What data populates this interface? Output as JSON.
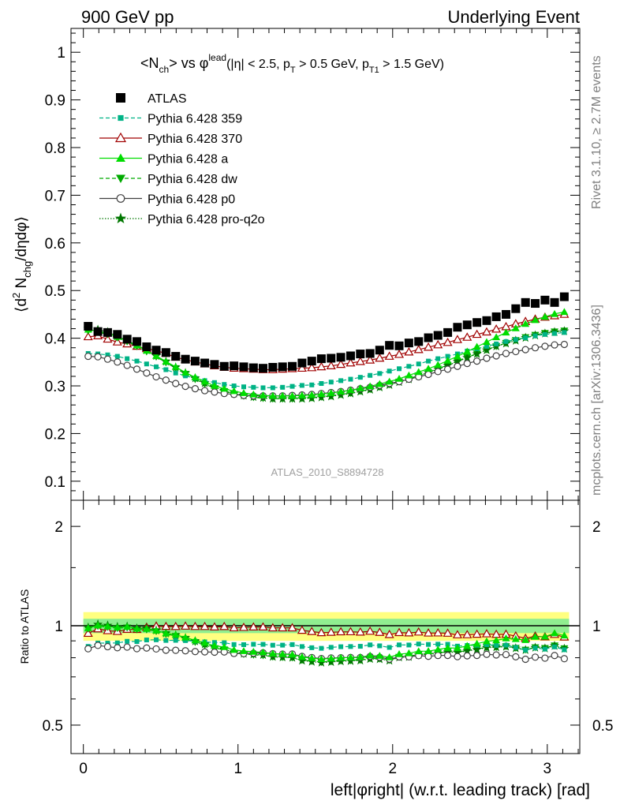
{
  "header": {
    "left": "900 GeV pp",
    "right": "Underlying Event"
  },
  "side_labels": {
    "rivet": "Rivet 3.1.10, ≥ 2.7M events",
    "mcplots": "mcplots.cern.ch [arXiv:1306.3436]"
  },
  "watermark": "ATLAS_2010_S8894728",
  "chart_data": [
    {
      "type": "scatter",
      "title": "<N_ch> vs φ^lead (|η| < 2.5, p_T > 0.5 GeV, p_T1 > 1.5 GeV)",
      "title_parts": {
        "main": "<N",
        "main_sub": "ch",
        "mid": "> vs φ",
        "mid_sup": "lead",
        "cuts_a": "(|η| < 2.5, p",
        "cuts_a_sub": "T",
        "cuts_b": " > 0.5 GeV, p",
        "cuts_b_sub": "T1",
        "cuts_c": " > 1.5 GeV)"
      },
      "ylabel": "⟨d² N_chg/dηdφ⟩",
      "ylabel_parts": {
        "a": "⟨d",
        "a_sup": "2",
        "b": " N",
        "b_sub": "chg",
        "c": "/dηdφ⟩"
      },
      "xlim": [
        -0.08,
        3.21
      ],
      "ylim": [
        0.06,
        1.05
      ],
      "yticks": [
        "0.1",
        "0.2",
        "0.3",
        "0.4",
        "0.5",
        "0.6",
        "0.7",
        "0.8",
        "0.9",
        "1"
      ],
      "x": [
        0.031,
        0.094,
        0.157,
        0.22,
        0.283,
        0.346,
        0.409,
        0.471,
        0.534,
        0.597,
        0.66,
        0.723,
        0.785,
        0.848,
        0.911,
        0.974,
        1.037,
        1.1,
        1.162,
        1.225,
        1.288,
        1.351,
        1.414,
        1.477,
        1.539,
        1.602,
        1.665,
        1.728,
        1.791,
        1.854,
        1.916,
        1.979,
        2.042,
        2.105,
        2.168,
        2.231,
        2.293,
        2.356,
        2.419,
        2.482,
        2.545,
        2.608,
        2.67,
        2.733,
        2.796,
        2.859,
        2.922,
        2.985,
        3.047,
        3.11
      ],
      "legend": {
        "position": "top-left"
      },
      "series": [
        {
          "name": "ATLAS",
          "color": "#000000",
          "marker": "square",
          "line": "none",
          "values": [
            0.425,
            0.414,
            0.412,
            0.408,
            0.398,
            0.393,
            0.382,
            0.375,
            0.37,
            0.362,
            0.356,
            0.352,
            0.348,
            0.345,
            0.341,
            0.342,
            0.34,
            0.338,
            0.337,
            0.339,
            0.34,
            0.341,
            0.348,
            0.352,
            0.357,
            0.358,
            0.36,
            0.363,
            0.367,
            0.368,
            0.375,
            0.385,
            0.384,
            0.39,
            0.393,
            0.401,
            0.406,
            0.412,
            0.423,
            0.428,
            0.433,
            0.437,
            0.445,
            0.45,
            0.462,
            0.475,
            0.473,
            0.48,
            0.475,
            0.487
          ]
        },
        {
          "name": "Pythia 6.428 359",
          "color": "#00b386",
          "marker": "small-square",
          "line": "dashed",
          "values": [
            0.368,
            0.367,
            0.365,
            0.362,
            0.357,
            0.352,
            0.346,
            0.34,
            0.334,
            0.327,
            0.321,
            0.316,
            0.311,
            0.307,
            0.303,
            0.3,
            0.298,
            0.297,
            0.296,
            0.296,
            0.297,
            0.299,
            0.301,
            0.302,
            0.305,
            0.308,
            0.311,
            0.314,
            0.318,
            0.322,
            0.326,
            0.331,
            0.336,
            0.341,
            0.346,
            0.352,
            0.357,
            0.362,
            0.367,
            0.373,
            0.378,
            0.383,
            0.388,
            0.393,
            0.397,
            0.401,
            0.405,
            0.408,
            0.41,
            0.412
          ]
        },
        {
          "name": "Pythia 6.428 370",
          "color": "#a00000",
          "marker": "open-triangle",
          "line": "solid",
          "values": [
            0.403,
            0.405,
            0.398,
            0.392,
            0.388,
            0.383,
            0.378,
            0.374,
            0.368,
            0.36,
            0.355,
            0.35,
            0.346,
            0.342,
            0.339,
            0.337,
            0.336,
            0.335,
            0.334,
            0.334,
            0.335,
            0.336,
            0.337,
            0.338,
            0.34,
            0.342,
            0.345,
            0.348,
            0.351,
            0.354,
            0.358,
            0.362,
            0.366,
            0.371,
            0.376,
            0.381,
            0.386,
            0.391,
            0.397,
            0.402,
            0.408,
            0.413,
            0.419,
            0.424,
            0.43,
            0.435,
            0.44,
            0.444,
            0.447,
            0.45
          ]
        },
        {
          "name": "Pythia 6.428 a",
          "color": "#00dd00",
          "marker": "triangle",
          "line": "solid",
          "values": [
            0.418,
            0.415,
            0.41,
            0.403,
            0.395,
            0.385,
            0.374,
            0.363,
            0.351,
            0.34,
            0.328,
            0.318,
            0.309,
            0.3,
            0.294,
            0.289,
            0.285,
            0.282,
            0.28,
            0.279,
            0.279,
            0.279,
            0.28,
            0.281,
            0.283,
            0.285,
            0.288,
            0.291,
            0.295,
            0.299,
            0.304,
            0.309,
            0.315,
            0.322,
            0.329,
            0.336,
            0.344,
            0.353,
            0.362,
            0.372,
            0.382,
            0.392,
            0.402,
            0.412,
            0.421,
            0.43,
            0.438,
            0.445,
            0.451,
            0.455
          ]
        },
        {
          "name": "Pythia 6.428 dw",
          "color": "#00aa00",
          "marker": "triangle-down",
          "line": "dashed",
          "values": [
            0.416,
            0.413,
            0.408,
            0.401,
            0.393,
            0.383,
            0.372,
            0.361,
            0.349,
            0.337,
            0.325,
            0.314,
            0.304,
            0.295,
            0.289,
            0.283,
            0.279,
            0.276,
            0.274,
            0.273,
            0.273,
            0.273,
            0.274,
            0.275,
            0.277,
            0.279,
            0.282,
            0.285,
            0.289,
            0.293,
            0.298,
            0.303,
            0.309,
            0.315,
            0.322,
            0.329,
            0.336,
            0.344,
            0.352,
            0.36,
            0.368,
            0.376,
            0.383,
            0.39,
            0.396,
            0.402,
            0.407,
            0.411,
            0.414,
            0.416
          ]
        },
        {
          "name": "Pythia 6.428 p0",
          "color": "#404040",
          "marker": "open-circle",
          "line": "solid",
          "values": [
            0.362,
            0.361,
            0.356,
            0.35,
            0.343,
            0.335,
            0.327,
            0.319,
            0.312,
            0.305,
            0.299,
            0.294,
            0.29,
            0.287,
            0.284,
            0.282,
            0.28,
            0.279,
            0.279,
            0.279,
            0.279,
            0.28,
            0.281,
            0.282,
            0.284,
            0.286,
            0.288,
            0.291,
            0.294,
            0.297,
            0.301,
            0.305,
            0.309,
            0.314,
            0.319,
            0.324,
            0.33,
            0.335,
            0.341,
            0.347,
            0.352,
            0.358,
            0.363,
            0.368,
            0.372,
            0.376,
            0.38,
            0.383,
            0.386,
            0.387
          ]
        },
        {
          "name": "Pythia 6.428 pro-q2o",
          "color": "#007700",
          "marker": "star",
          "line": "dotted",
          "values": [
            0.42,
            0.418,
            0.413,
            0.405,
            0.396,
            0.386,
            0.375,
            0.363,
            0.351,
            0.339,
            0.327,
            0.316,
            0.306,
            0.297,
            0.29,
            0.284,
            0.28,
            0.277,
            0.275,
            0.273,
            0.273,
            0.273,
            0.273,
            0.274,
            0.276,
            0.278,
            0.281,
            0.284,
            0.288,
            0.292,
            0.297,
            0.302,
            0.308,
            0.314,
            0.321,
            0.328,
            0.335,
            0.343,
            0.351,
            0.359,
            0.367,
            0.375,
            0.383,
            0.389,
            0.395,
            0.401,
            0.406,
            0.41,
            0.413,
            0.415
          ]
        }
      ]
    },
    {
      "type": "scatter",
      "ylabel": "Ratio to ATLAS",
      "xlabel": "left|φright| (w.r.t. leading track) [rad]",
      "xlim": [
        -0.08,
        3.21
      ],
      "ylim": [
        0.41,
        2.4
      ],
      "log_y": true,
      "xticks": [
        "0",
        "1",
        "2",
        "3"
      ],
      "yticks": [
        "0.5",
        "1",
        "2"
      ],
      "reference_band": {
        "inner": [
          0.95,
          1.05
        ],
        "outer": [
          0.9,
          1.1
        ],
        "inner_color": "#90ee90",
        "outer_color": "#ffff80"
      }
    }
  ]
}
